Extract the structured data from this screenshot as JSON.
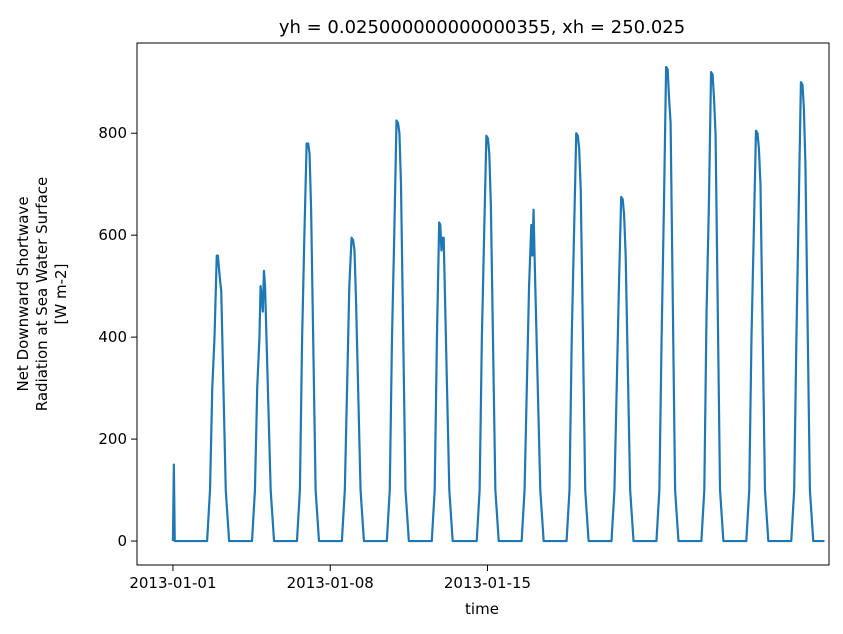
{
  "chart_data": {
    "type": "line",
    "title": "yh = 0.025000000000000355, xh = 250.025",
    "xlabel": "time",
    "ylabel_lines": [
      "Net Downward Shortwave",
      "Radiation at Sea Water Surface",
      "[W m-2]"
    ],
    "x_unit": "days since 2013-01-01",
    "xlim": [
      -1.6,
      29.2
    ],
    "ylim": [
      -47,
      977
    ],
    "xticks": [
      {
        "value": 0,
        "label": "2013-01-01"
      },
      {
        "value": 7,
        "label": "2013-01-08"
      },
      {
        "value": 14,
        "label": "2013-01-15"
      }
    ],
    "yticks": [
      {
        "value": 0,
        "label": "0"
      },
      {
        "value": 200,
        "label": "200"
      },
      {
        "value": 400,
        "label": "400"
      },
      {
        "value": 600,
        "label": "600"
      },
      {
        "value": 800,
        "label": "800"
      }
    ],
    "grid": false,
    "legend": "none",
    "series": [
      {
        "color": "#1f77b4",
        "points": [
          [
            0.0,
            0
          ],
          [
            0.04,
            150
          ],
          [
            0.08,
            0
          ],
          [
            0.5,
            0
          ],
          [
            0.9,
            0
          ],
          [
            1.0,
            0
          ],
          [
            1.3,
            0
          ],
          [
            1.52,
            0
          ],
          [
            1.65,
            100
          ],
          [
            1.75,
            300
          ],
          [
            1.85,
            400
          ],
          [
            1.95,
            560
          ],
          [
            2.0,
            560
          ],
          [
            2.06,
            530
          ],
          [
            2.1,
            510
          ],
          [
            2.15,
            490
          ],
          [
            2.35,
            100
          ],
          [
            2.5,
            0
          ],
          [
            2.8,
            0
          ],
          [
            3.2,
            0
          ],
          [
            3.52,
            0
          ],
          [
            3.65,
            100
          ],
          [
            3.75,
            300
          ],
          [
            3.85,
            400
          ],
          [
            3.9,
            500
          ],
          [
            3.95,
            480
          ],
          [
            4.0,
            450
          ],
          [
            4.05,
            530
          ],
          [
            4.1,
            500
          ],
          [
            4.35,
            100
          ],
          [
            4.5,
            0
          ],
          [
            4.8,
            0
          ],
          [
            5.2,
            0
          ],
          [
            5.52,
            0
          ],
          [
            5.65,
            100
          ],
          [
            5.75,
            400
          ],
          [
            5.85,
            600
          ],
          [
            5.95,
            780
          ],
          [
            6.02,
            780
          ],
          [
            6.08,
            760
          ],
          [
            6.15,
            650
          ],
          [
            6.35,
            100
          ],
          [
            6.5,
            0
          ],
          [
            6.8,
            0
          ],
          [
            7.2,
            0
          ],
          [
            7.52,
            0
          ],
          [
            7.65,
            100
          ],
          [
            7.75,
            300
          ],
          [
            7.85,
            500
          ],
          [
            7.95,
            595
          ],
          [
            8.02,
            590
          ],
          [
            8.08,
            570
          ],
          [
            8.15,
            470
          ],
          [
            8.35,
            100
          ],
          [
            8.5,
            0
          ],
          [
            8.8,
            0
          ],
          [
            9.2,
            0
          ],
          [
            9.52,
            0
          ],
          [
            9.65,
            100
          ],
          [
            9.75,
            400
          ],
          [
            9.85,
            600
          ],
          [
            9.95,
            825
          ],
          [
            10.02,
            820
          ],
          [
            10.08,
            800
          ],
          [
            10.15,
            700
          ],
          [
            10.35,
            100
          ],
          [
            10.5,
            0
          ],
          [
            10.8,
            0
          ],
          [
            11.2,
            0
          ],
          [
            11.52,
            0
          ],
          [
            11.65,
            100
          ],
          [
            11.75,
            400
          ],
          [
            11.85,
            625
          ],
          [
            11.9,
            620
          ],
          [
            11.95,
            570
          ],
          [
            12.0,
            595
          ],
          [
            12.05,
            595
          ],
          [
            12.3,
            100
          ],
          [
            12.45,
            0
          ],
          [
            12.8,
            0
          ],
          [
            13.2,
            0
          ],
          [
            13.52,
            0
          ],
          [
            13.65,
            100
          ],
          [
            13.75,
            400
          ],
          [
            13.85,
            600
          ],
          [
            13.95,
            795
          ],
          [
            14.02,
            790
          ],
          [
            14.08,
            760
          ],
          [
            14.15,
            660
          ],
          [
            14.35,
            100
          ],
          [
            14.5,
            0
          ],
          [
            14.8,
            0
          ],
          [
            15.2,
            0
          ],
          [
            15.52,
            0
          ],
          [
            15.65,
            100
          ],
          [
            15.75,
            300
          ],
          [
            15.85,
            500
          ],
          [
            15.95,
            620
          ],
          [
            16.0,
            560
          ],
          [
            16.05,
            650
          ],
          [
            16.1,
            550
          ],
          [
            16.35,
            100
          ],
          [
            16.5,
            0
          ],
          [
            16.8,
            0
          ],
          [
            17.2,
            0
          ],
          [
            17.52,
            0
          ],
          [
            17.65,
            100
          ],
          [
            17.75,
            400
          ],
          [
            17.85,
            600
          ],
          [
            17.95,
            800
          ],
          [
            18.02,
            795
          ],
          [
            18.08,
            770
          ],
          [
            18.15,
            690
          ],
          [
            18.35,
            100
          ],
          [
            18.5,
            0
          ],
          [
            18.8,
            0
          ],
          [
            19.2,
            0
          ],
          [
            19.52,
            0
          ],
          [
            19.65,
            100
          ],
          [
            19.75,
            300
          ],
          [
            19.85,
            500
          ],
          [
            19.95,
            675
          ],
          [
            20.02,
            670
          ],
          [
            20.08,
            640
          ],
          [
            20.15,
            560
          ],
          [
            20.35,
            100
          ],
          [
            20.5,
            0
          ],
          [
            20.8,
            0
          ],
          [
            21.2,
            0
          ],
          [
            21.52,
            0
          ],
          [
            21.65,
            100
          ],
          [
            21.75,
            400
          ],
          [
            21.85,
            650
          ],
          [
            21.95,
            930
          ],
          [
            22.02,
            925
          ],
          [
            22.08,
            870
          ],
          [
            22.15,
            820
          ],
          [
            22.35,
            100
          ],
          [
            22.5,
            0
          ],
          [
            22.8,
            0
          ],
          [
            23.2,
            0
          ],
          [
            23.52,
            0
          ],
          [
            23.65,
            100
          ],
          [
            23.75,
            450
          ],
          [
            23.85,
            650
          ],
          [
            23.95,
            920
          ],
          [
            24.02,
            915
          ],
          [
            24.08,
            870
          ],
          [
            24.15,
            800
          ],
          [
            24.35,
            100
          ],
          [
            24.5,
            0
          ],
          [
            24.8,
            0
          ],
          [
            25.2,
            0
          ],
          [
            25.52,
            0
          ],
          [
            25.65,
            100
          ],
          [
            25.75,
            400
          ],
          [
            25.85,
            600
          ],
          [
            25.95,
            805
          ],
          [
            26.02,
            800
          ],
          [
            26.08,
            770
          ],
          [
            26.15,
            700
          ],
          [
            26.35,
            100
          ],
          [
            26.5,
            0
          ],
          [
            26.8,
            0
          ],
          [
            27.2,
            0
          ],
          [
            27.52,
            0
          ],
          [
            27.65,
            100
          ],
          [
            27.75,
            400
          ],
          [
            27.85,
            650
          ],
          [
            27.95,
            900
          ],
          [
            28.02,
            895
          ],
          [
            28.08,
            850
          ],
          [
            28.15,
            740
          ],
          [
            28.35,
            100
          ],
          [
            28.5,
            0
          ],
          [
            28.8,
            0
          ],
          [
            29.0,
            0
          ]
        ]
      }
    ]
  }
}
